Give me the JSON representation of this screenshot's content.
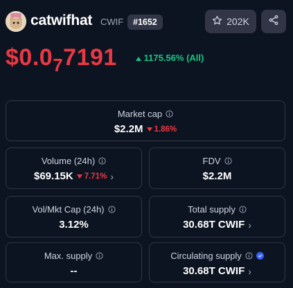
{
  "header": {
    "coin_name": "catwifhat",
    "coin_symbol": "CWIF",
    "rank": "#1652",
    "watchlist_count": "202K"
  },
  "price": {
    "prefix": "$0.0",
    "subscript": "7",
    "digits": "7191",
    "change": "1175.56% (All)"
  },
  "stats": {
    "market_cap": {
      "label": "Market cap",
      "value": "$2.2M",
      "change": "1.86%"
    },
    "volume": {
      "label": "Volume (24h)",
      "value": "$69.15K",
      "change": "7.71%"
    },
    "fdv": {
      "label": "FDV",
      "value": "$2.2M"
    },
    "vol_mkt_cap": {
      "label": "Vol/Mkt Cap (24h)",
      "value": "3.12%"
    },
    "total_supply": {
      "label": "Total supply",
      "value": "30.68T CWIF"
    },
    "max_supply": {
      "label": "Max. supply",
      "value": "--"
    },
    "circulating_supply": {
      "label": "Circulating supply",
      "value": "30.68T CWIF"
    }
  },
  "colors": {
    "background": "#0d1421",
    "negative": "#ea3943",
    "positive": "#16c784",
    "card_border": "#323546",
    "verified": "#3861fb"
  }
}
